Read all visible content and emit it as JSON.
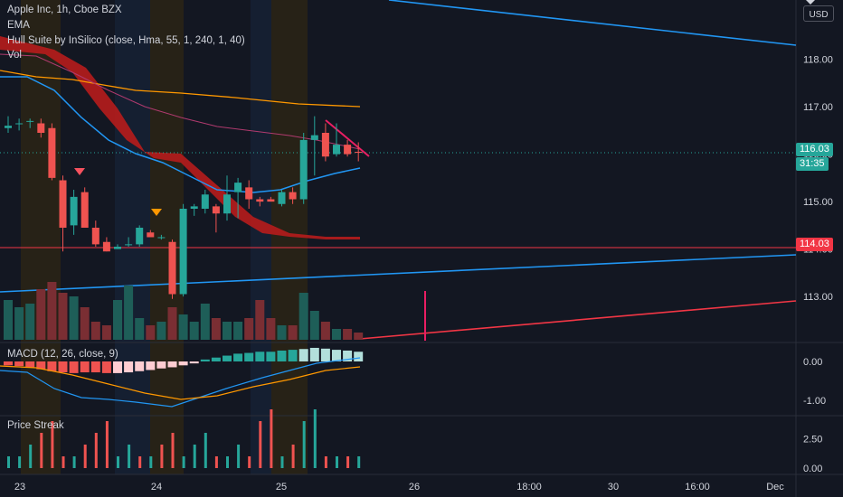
{
  "header": {
    "symbol_line": "Apple Inc, 1h, Cboe BZX",
    "ind1": "EMA",
    "ind2": "Hull Suite by InSilico (close, Hma, 55, 1, 240, 1, 40)",
    "ind3": "Vol"
  },
  "currency_button": {
    "label": "USD",
    "chevron": "chevron-down-icon"
  },
  "badges": {
    "last_price": "116.03",
    "countdown": "31:35",
    "level": "114.03"
  },
  "colors": {
    "up": "#26a69a",
    "down": "#ef5350",
    "ema_blue": "#2196f3",
    "ema_orange": "#ff9800",
    "ema_purple": "#9c27b0",
    "hull_red": "#b71c1c",
    "trendline_blue": "#2196f3",
    "trendline_red": "#f23645",
    "pink_line": "#e91e63",
    "level_line": "#f23645",
    "session_band": "#2a2416",
    "session_band_blue": "#162033"
  },
  "macd": {
    "label": "MACD (12, 26, close, 9)",
    "ticks": [
      "0.00",
      "-1.00"
    ]
  },
  "streak": {
    "label": "Price Streak",
    "ticks": [
      "2.50",
      "0.00"
    ]
  },
  "chart_data": {
    "type": "candlestick",
    "title": "Apple Inc, 1h, Cboe BZX",
    "y_ticks": [
      "118.00",
      "117.00",
      "116.00",
      "115.00",
      "114.00",
      "113.00"
    ],
    "ylim": [
      112.05,
      119.25
    ],
    "x_ticks": [
      "23",
      "24",
      "25",
      "26",
      "18:00",
      "30",
      "16:00",
      "Dec"
    ],
    "candles": [
      {
        "o": 116.55,
        "h": 116.8,
        "l": 116.45,
        "c": 116.6
      },
      {
        "o": 116.65,
        "h": 116.75,
        "l": 116.5,
        "c": 116.65
      },
      {
        "o": 116.7,
        "h": 116.75,
        "l": 116.55,
        "c": 116.7
      },
      {
        "o": 116.65,
        "h": 116.75,
        "l": 116.35,
        "c": 116.45
      },
      {
        "o": 116.55,
        "h": 116.65,
        "l": 115.45,
        "c": 115.5
      },
      {
        "o": 115.45,
        "h": 115.55,
        "l": 113.95,
        "c": 114.45
      },
      {
        "o": 114.5,
        "h": 115.25,
        "l": 114.3,
        "c": 115.1
      },
      {
        "o": 115.2,
        "h": 115.3,
        "l": 114.45,
        "c": 114.45
      },
      {
        "o": 114.45,
        "h": 114.6,
        "l": 114.05,
        "c": 114.1
      },
      {
        "o": 114.15,
        "h": 114.25,
        "l": 113.95,
        "c": 113.95
      },
      {
        "o": 114.0,
        "h": 114.1,
        "l": 114.0,
        "c": 114.05
      },
      {
        "o": 114.1,
        "h": 114.25,
        "l": 114.05,
        "c": 114.1
      },
      {
        "o": 114.1,
        "h": 114.5,
        "l": 114.05,
        "c": 114.45
      },
      {
        "o": 114.35,
        "h": 114.4,
        "l": 114.25,
        "c": 114.25
      },
      {
        "o": 114.25,
        "h": 114.3,
        "l": 114.2,
        "c": 114.25
      },
      {
        "o": 114.15,
        "h": 114.2,
        "l": 112.95,
        "c": 113.05
      },
      {
        "o": 113.05,
        "h": 114.95,
        "l": 113.0,
        "c": 114.85
      },
      {
        "o": 114.85,
        "h": 114.95,
        "l": 114.7,
        "c": 114.9
      },
      {
        "o": 114.85,
        "h": 115.25,
        "l": 114.75,
        "c": 115.15
      },
      {
        "o": 114.9,
        "h": 114.95,
        "l": 114.35,
        "c": 114.75
      },
      {
        "o": 114.75,
        "h": 115.55,
        "l": 114.6,
        "c": 115.15
      },
      {
        "o": 115.2,
        "h": 115.5,
        "l": 114.65,
        "c": 115.4
      },
      {
        "o": 115.3,
        "h": 115.45,
        "l": 114.85,
        "c": 115.05
      },
      {
        "o": 115.05,
        "h": 115.1,
        "l": 114.9,
        "c": 115.0
      },
      {
        "o": 115.05,
        "h": 115.1,
        "l": 115.0,
        "c": 115.0
      },
      {
        "o": 114.95,
        "h": 115.25,
        "l": 114.9,
        "c": 115.2
      },
      {
        "o": 115.2,
        "h": 115.3,
        "l": 114.95,
        "c": 115.05
      },
      {
        "o": 115.05,
        "h": 116.45,
        "l": 114.95,
        "c": 116.3
      },
      {
        "o": 116.3,
        "h": 116.8,
        "l": 115.55,
        "c": 116.4
      },
      {
        "o": 116.45,
        "h": 116.65,
        "l": 115.85,
        "c": 115.95
      },
      {
        "o": 116.0,
        "h": 116.65,
        "l": 115.95,
        "c": 116.2
      },
      {
        "o": 116.2,
        "h": 116.3,
        "l": 115.95,
        "c": 116.0
      },
      {
        "o": 116.05,
        "h": 116.25,
        "l": 115.85,
        "c": 116.03
      }
    ],
    "volume_relative": [
      0.55,
      0.45,
      0.5,
      0.7,
      0.8,
      0.65,
      0.6,
      0.45,
      0.25,
      0.2,
      0.55,
      0.75,
      0.3,
      0.2,
      0.25,
      0.45,
      0.35,
      0.25,
      0.5,
      0.3,
      0.25,
      0.25,
      0.3,
      0.55,
      0.3,
      0.2,
      0.2,
      0.65,
      0.4,
      0.25,
      0.15,
      0.15,
      0.1
    ],
    "level_line": 114.03,
    "last_price": 116.03
  }
}
